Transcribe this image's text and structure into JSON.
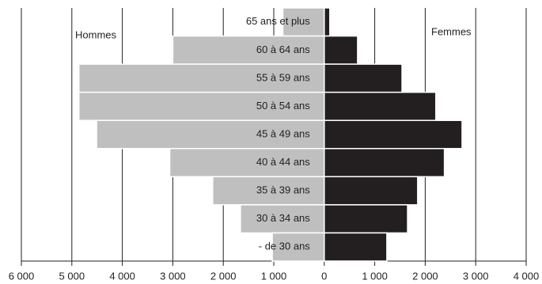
{
  "chart_data": {
    "type": "pyramid",
    "categories": [
      "65 ans et plus",
      "60 à 64 ans",
      "55 à 59 ans",
      "50 à 54 ans",
      "45 à 49 ans",
      "40 à 44 ans",
      "35 à 39 ans",
      "30 à 34 ans",
      "- de 30 ans"
    ],
    "series": [
      {
        "name": "Hommes",
        "color": "#bfbfbf",
        "side": "left",
        "values": [
          820,
          3000,
          4860,
          4860,
          4510,
          3060,
          2210,
          1660,
          1030
        ]
      },
      {
        "name": "Femmes",
        "color": "#231f20",
        "side": "right",
        "values": [
          110,
          660,
          1540,
          2210,
          2730,
          2380,
          1850,
          1650,
          1240
        ]
      }
    ],
    "xlim": [
      -6000,
      4000
    ],
    "xticks": [
      {
        "value": -6000,
        "label": "6 000"
      },
      {
        "value": -5000,
        "label": "5 000"
      },
      {
        "value": -4000,
        "label": "4 000"
      },
      {
        "value": -3000,
        "label": "3 000"
      },
      {
        "value": -2000,
        "label": "2 000"
      },
      {
        "value": -1000,
        "label": "1 000"
      },
      0,
      {
        "value": 1000,
        "label": "1 000"
      },
      {
        "value": 2000,
        "label": "2 000"
      },
      {
        "value": 3000,
        "label": "3 000"
      },
      {
        "value": 4000,
        "label": "4 000"
      }
    ],
    "grid": true
  }
}
